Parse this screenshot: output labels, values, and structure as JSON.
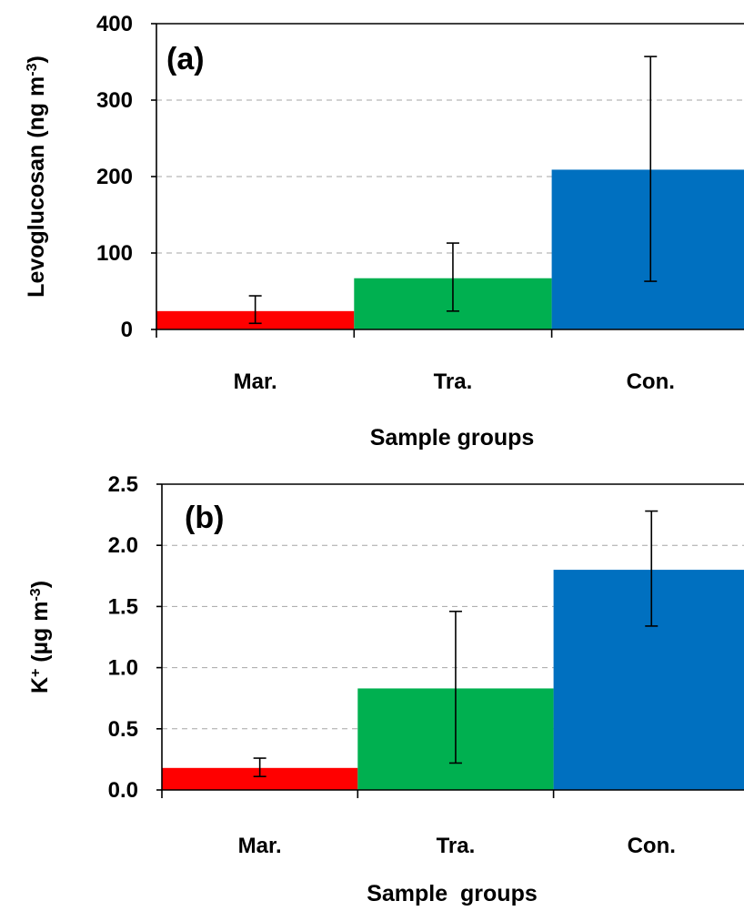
{
  "chart_data": [
    {
      "type": "bar",
      "panel_label": "(a)",
      "categories": [
        "Mar.",
        "Tra.",
        "Con."
      ],
      "values": [
        24,
        67,
        209
      ],
      "error_low": [
        8,
        24,
        63
      ],
      "error_high": [
        44,
        113,
        357
      ],
      "colors": [
        "#ff0000",
        "#00b050",
        "#0070c0"
      ],
      "ylim": [
        0,
        400
      ],
      "yticks": [
        "0",
        "100",
        "200",
        "300",
        "400"
      ],
      "ytick_values": [
        0,
        100,
        200,
        300,
        400
      ],
      "ylabel": "Levoglucosan (ng m",
      "ylabel_sup": "-3",
      "ylabel_end": ")",
      "xlabel": "Sample groups",
      "grid": true
    },
    {
      "type": "bar",
      "panel_label": "(b)",
      "categories": [
        "Mar.",
        "Tra.",
        "Con."
      ],
      "values": [
        0.18,
        0.83,
        1.8
      ],
      "error_low": [
        0.11,
        0.22,
        1.34
      ],
      "error_high": [
        0.26,
        1.46,
        2.28
      ],
      "colors": [
        "#ff0000",
        "#00b050",
        "#0070c0"
      ],
      "ylim": [
        0,
        2.5
      ],
      "yticks": [
        "0.0",
        "0.5",
        "1.0",
        "1.5",
        "2.0",
        "2.5"
      ],
      "ytick_values": [
        0,
        0.5,
        1.0,
        1.5,
        2.0,
        2.5
      ],
      "ylabel": "K",
      "ylabel_sup": "+",
      "ylabel_mid": " (µg m",
      "ylabel_sup2": "-3",
      "ylabel_end": ")",
      "xlabel": "Sample  groups",
      "grid": true
    }
  ]
}
